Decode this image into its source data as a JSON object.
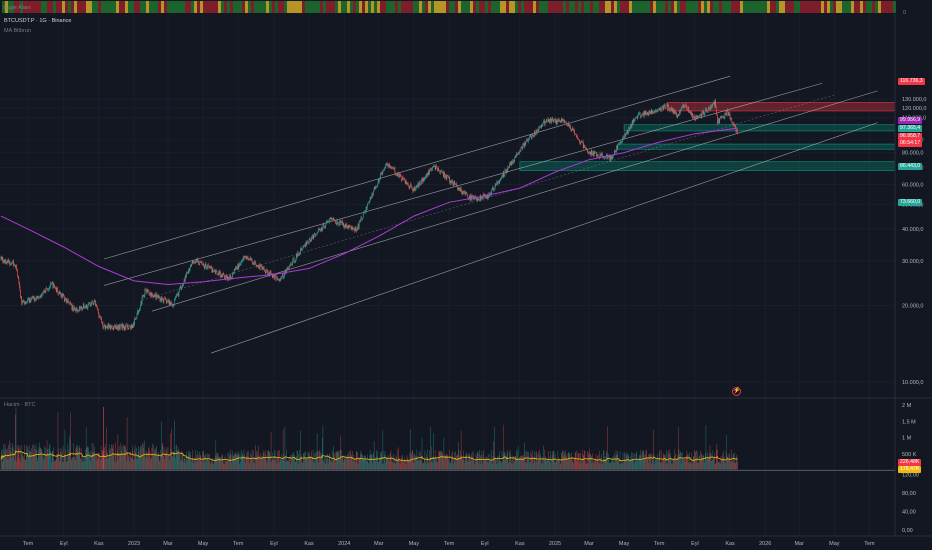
{
  "header": {
    "indicator_strip_label": "Kupe Alanı",
    "symbol_line": "BTCUSDT.P · 1G · Binance",
    "ma_label": "MA Bitbrun",
    "volume_label": "Hacim · BTC",
    "zero_label": "0"
  },
  "colors": {
    "background": "#131722",
    "bull": "#26a69a",
    "bear": "#ef5350",
    "ma_line": "#b139d8",
    "channel": "#c8cad2",
    "resistance_zone": "#f23645",
    "support_zone": "#089981",
    "volume_ma": "#f0b90b"
  },
  "badges": [
    {
      "text": "116.736,3",
      "bg": "#f23645"
    },
    {
      "text": "99.956,9",
      "bg": "#9c27b0"
    },
    {
      "text": "97.365,4",
      "bg": "#26a69a"
    },
    {
      "text": "96.958,7",
      "bg": "#f23645"
    },
    {
      "text": "06:54:17",
      "bg": "#f23645"
    },
    {
      "text": "86.443,0",
      "bg": "#26a69a"
    },
    {
      "text": "73.660,0",
      "bg": "#26a69a"
    }
  ],
  "volume_badges": [
    {
      "text": "226,48K",
      "bg": "#f23645"
    },
    {
      "text": "178,47K",
      "bg": "#f0b90b"
    }
  ],
  "chart_data": {
    "type": "candlestick",
    "symbol": "BTCUSDT.P",
    "timeframe": "1G",
    "exchange": "Binance",
    "price_scale": "log",
    "y_ticks": [
      "130.000,0",
      "120.000,0",
      "110.000,0",
      "90.000,0",
      "80.000,0",
      "70.000,0",
      "60.000,0",
      "50.000,0",
      "40.000,0",
      "30.000,0",
      "20.000,0",
      "10.000,0"
    ],
    "y_tick_values": [
      130000,
      120000,
      110000,
      90000,
      80000,
      70000,
      60000,
      50000,
      40000,
      30000,
      20000,
      10000
    ],
    "x_labels": [
      "Tem",
      "Eyl",
      "Kas",
      "2023",
      "Mar",
      "May",
      "Tem",
      "Eyl",
      "Kas",
      "2024",
      "Mar",
      "May",
      "Tem",
      "Eyl",
      "Kas",
      "2025",
      "Mar",
      "May",
      "Tem",
      "Eyl",
      "Kas",
      "2026",
      "Mar",
      "May",
      "Tem"
    ],
    "x_label_dates": [
      "2022-07-01",
      "2022-09-01",
      "2022-11-01",
      "2023-01-01",
      "2023-03-01",
      "2023-05-01",
      "2023-07-01",
      "2023-09-01",
      "2023-11-01",
      "2024-01-01",
      "2024-03-01",
      "2024-05-01",
      "2024-07-01",
      "2024-09-01",
      "2024-11-01",
      "2025-01-01",
      "2025-03-01",
      "2025-05-01",
      "2025-07-01",
      "2025-09-01",
      "2025-11-01",
      "2026-01-01",
      "2026-03-01",
      "2026-05-01",
      "2026-07-01"
    ],
    "price_path": [
      [
        "2022-05-15",
        30500
      ],
      [
        "2022-06-10",
        29000
      ],
      [
        "2022-06-20",
        20500
      ],
      [
        "2022-07-15",
        21500
      ],
      [
        "2022-08-12",
        24200
      ],
      [
        "2022-09-20",
        19200
      ],
      [
        "2022-10-25",
        20500
      ],
      [
        "2022-11-09",
        16500
      ],
      [
        "2022-12-30",
        16550
      ],
      [
        "2023-01-20",
        22800
      ],
      [
        "2023-03-10",
        20200
      ],
      [
        "2023-04-14",
        30300
      ],
      [
        "2023-06-15",
        25500
      ],
      [
        "2023-07-13",
        31200
      ],
      [
        "2023-09-11",
        25200
      ],
      [
        "2023-10-24",
        34500
      ],
      [
        "2023-12-08",
        44000
      ],
      [
        "2024-01-22",
        39500
      ],
      [
        "2024-03-14",
        73000
      ],
      [
        "2024-05-01",
        57000
      ],
      [
        "2024-06-05",
        71000
      ],
      [
        "2024-08-05",
        53000
      ],
      [
        "2024-09-06",
        53500
      ],
      [
        "2024-11-12",
        88500
      ],
      [
        "2024-12-17",
        107000
      ],
      [
        "2025-01-20",
        106000
      ],
      [
        "2025-02-28",
        80000
      ],
      [
        "2025-04-08",
        76000
      ],
      [
        "2025-05-22",
        111000
      ],
      [
        "2025-07-14",
        122000
      ],
      [
        "2025-08-02",
        112000
      ],
      [
        "2025-08-14",
        124000
      ],
      [
        "2025-09-01",
        108000
      ],
      [
        "2025-10-06",
        125500
      ],
      [
        "2025-10-10",
        105000
      ],
      [
        "2025-10-27",
        115500
      ],
      [
        "2025-11-14",
        96958.7
      ]
    ],
    "moving_average": {
      "name": "MA Bitbrun",
      "points": [
        [
          "2022-05-15",
          45000
        ],
        [
          "2022-07-01",
          40000
        ],
        [
          "2022-09-01",
          34000
        ],
        [
          "2022-11-01",
          28500
        ],
        [
          "2023-01-01",
          25000
        ],
        [
          "2023-03-01",
          24200
        ],
        [
          "2023-05-01",
          24800
        ],
        [
          "2023-07-01",
          25700
        ],
        [
          "2023-09-01",
          26500
        ],
        [
          "2023-11-01",
          28000
        ],
        [
          "2024-01-01",
          32000
        ],
        [
          "2024-03-01",
          37500
        ],
        [
          "2024-05-01",
          45000
        ],
        [
          "2024-07-01",
          51000
        ],
        [
          "2024-09-01",
          54000
        ],
        [
          "2024-11-01",
          58000
        ],
        [
          "2025-01-01",
          67000
        ],
        [
          "2025-03-01",
          75000
        ],
        [
          "2025-05-01",
          80000
        ],
        [
          "2025-07-01",
          88000
        ],
        [
          "2025-09-01",
          95000
        ],
        [
          "2025-11-01",
          99000
        ],
        [
          "2025-11-14",
          99956.9
        ]
      ]
    },
    "channel_lines": [
      {
        "from": [
          "2022-11-10",
          30500
        ],
        "to": [
          "2025-11-01",
          160000
        ]
      },
      {
        "from": [
          "2022-11-10",
          24000
        ],
        "to": [
          "2026-04-10",
          150000
        ]
      },
      {
        "from": [
          "2023-02-01",
          19000
        ],
        "to": [
          "2026-07-15",
          140000
        ]
      },
      {
        "from": [
          "2023-05-15",
          13000
        ],
        "to": [
          "2026-07-15",
          105000
        ]
      }
    ],
    "zones": [
      {
        "kind": "resistance",
        "from": "2025-07-15",
        "top": 126000,
        "bottom": 116736.3
      },
      {
        "kind": "support",
        "from": "2025-05-01",
        "top": 103000,
        "bottom": 97365.4
      },
      {
        "kind": "support",
        "from": "2025-04-20",
        "top": 86443.0,
        "bottom": 82500
      },
      {
        "kind": "support",
        "from": "2024-11-01",
        "top": 73660.0,
        "bottom": 68000
      }
    ],
    "volume": {
      "label": "Hacim · BTC",
      "y_ticks": [
        "2 M",
        "1,5 M",
        "1 M",
        "500 K"
      ],
      "y_tick_values": [
        2000000,
        1500000,
        1000000,
        500000
      ],
      "last_volume": "226,48K",
      "volume_ma": "178,47K"
    },
    "oscillator": {
      "y_ticks": [
        "120,00",
        "80,00",
        "40,00",
        "0,00"
      ],
      "y_tick_values": [
        120,
        80,
        40,
        0
      ]
    }
  }
}
